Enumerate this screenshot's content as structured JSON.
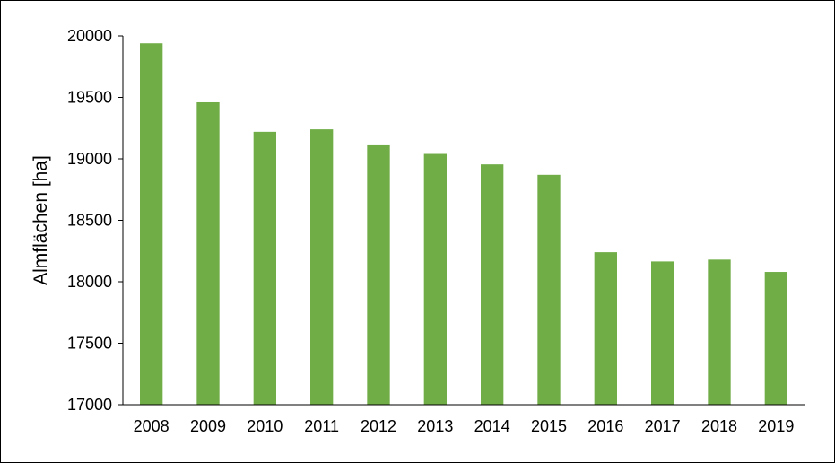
{
  "chart_data": {
    "type": "bar",
    "title": "",
    "xlabel": "",
    "ylabel": "Almflächen [ha]",
    "categories": [
      "2008",
      "2009",
      "2010",
      "2011",
      "2012",
      "2013",
      "2014",
      "2015",
      "2016",
      "2017",
      "2018",
      "2019"
    ],
    "values": [
      19940,
      19460,
      19220,
      19240,
      19110,
      19040,
      18955,
      18870,
      18240,
      18165,
      18180,
      18080
    ],
    "ylim": [
      17000,
      20000
    ],
    "yticks": [
      "17000",
      "17500",
      "18000",
      "18500",
      "19000",
      "19500",
      "20000"
    ],
    "grid": false,
    "legend": "none",
    "bar_color": "#70AD47"
  }
}
